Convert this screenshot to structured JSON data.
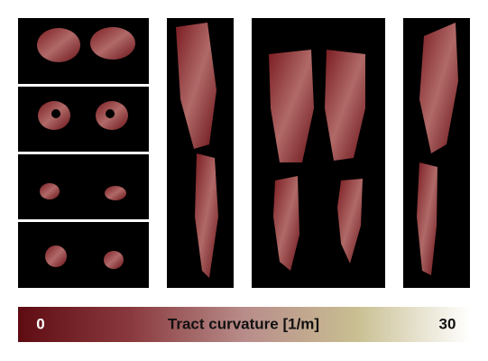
{
  "colorbar": {
    "min": 0,
    "label": "Tract curvature [1/m]",
    "max": 30
  }
}
